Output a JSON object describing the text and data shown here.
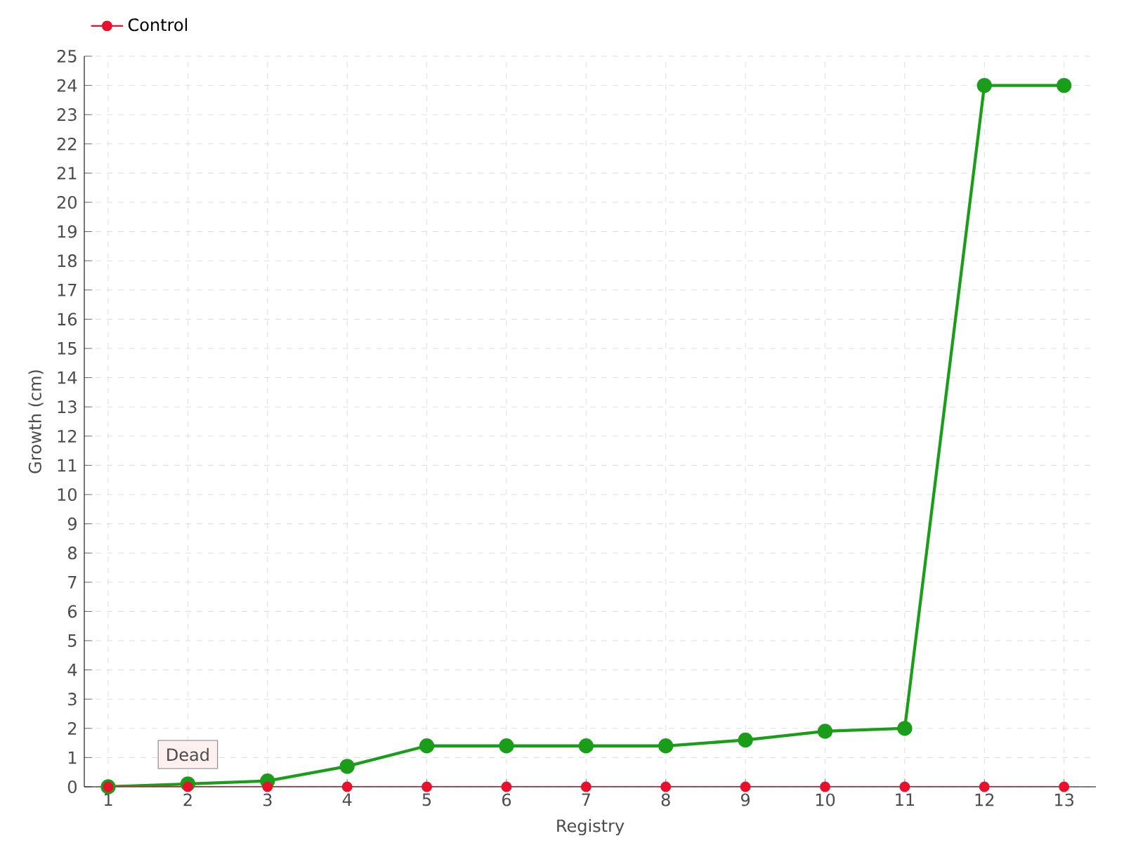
{
  "chart_data": {
    "type": "line",
    "xlabel": "Registry",
    "ylabel": "Growth (cm)",
    "categories": [
      "1",
      "2",
      "3",
      "4",
      "5",
      "6",
      "7",
      "8",
      "9",
      "10",
      "11",
      "12",
      "13"
    ],
    "series": [
      {
        "color": "#1a9e1a",
        "values": [
          0,
          0.1,
          0.2,
          0.7,
          1.4,
          1.4,
          1.4,
          1.4,
          1.6,
          1.9,
          2.0,
          24,
          24
        ]
      },
      {
        "name": "Control",
        "color": "#e8102a",
        "values": [
          0,
          0,
          0,
          0,
          0,
          0,
          0,
          0,
          0,
          0,
          0,
          0,
          0
        ]
      }
    ],
    "ylim": [
      0,
      25
    ],
    "yticks": [
      0,
      1,
      2,
      3,
      4,
      5,
      6,
      7,
      8,
      9,
      10,
      11,
      12,
      13,
      14,
      15,
      16,
      17,
      18,
      19,
      20,
      21,
      22,
      23,
      24,
      25
    ],
    "grid": true,
    "legend": "top left",
    "marker": "circle",
    "line_style": "solid",
    "annotations": [
      {
        "text": "Dead",
        "x": "2",
        "y": 0.1
      }
    ]
  }
}
